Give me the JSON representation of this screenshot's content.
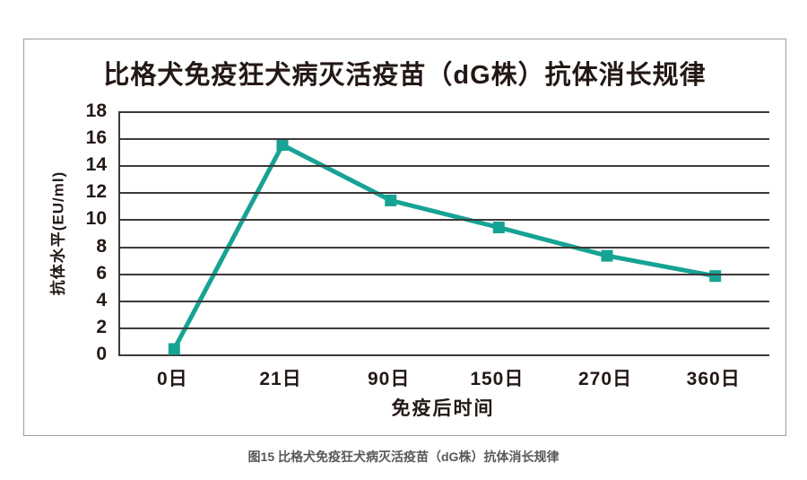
{
  "figure": {
    "caption": "图15 比格犬免疫狂犬病灭活疫苗（dG株）抗体消长规律"
  },
  "chart_data": {
    "type": "line",
    "title": "比格犬免疫狂犬病灭活疫苗（dG株）抗体消长规律",
    "categories": [
      "0日",
      "21日",
      "90日",
      "150日",
      "270日",
      "360日"
    ],
    "values": [
      0.4,
      15.5,
      11.4,
      9.4,
      7.3,
      5.8
    ],
    "series_name": "抗体水平",
    "xlabel": "免疫后时间",
    "ylabel": "抗体水平(EU/ml)",
    "ylim": [
      0,
      18
    ],
    "yticks": [
      0,
      2,
      4,
      6,
      8,
      10,
      12,
      14,
      16,
      18
    ],
    "grid": "horizontal",
    "legend_position": "none",
    "marker": "square",
    "line_color": "#16a394",
    "marker_color": "#16a394",
    "grid_color": "#3e3a39",
    "text_color": "#231815",
    "caption_color": "#595757"
  }
}
